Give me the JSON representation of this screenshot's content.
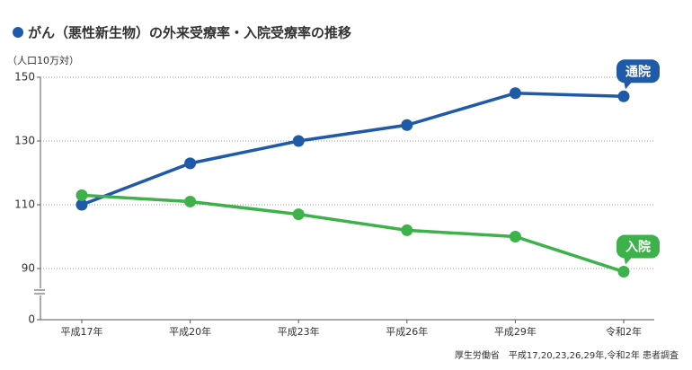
{
  "chart_data": {
    "type": "line",
    "title": "がん（悪性新生物）の外来受療率・入院受療率の推移",
    "y_label": "（人口10万対）",
    "source": "厚生労働省　平成17,20,23,26,29年,令和2年 患者調査",
    "categories": [
      "平成17年",
      "平成20年",
      "平成23年",
      "平成26年",
      "平成29年",
      "令和2年"
    ],
    "series": [
      {
        "name": "通院",
        "color": "#1e5aa8",
        "values": [
          110,
          123,
          130,
          135,
          145,
          144
        ]
      },
      {
        "name": "入院",
        "color": "#3eb24a",
        "values": [
          113,
          111,
          107,
          102,
          100,
          89
        ]
      }
    ],
    "ylim": [
      0,
      150
    ],
    "yticks": [
      0,
      90,
      110,
      130,
      150
    ],
    "axis_break": true,
    "grid": true
  }
}
